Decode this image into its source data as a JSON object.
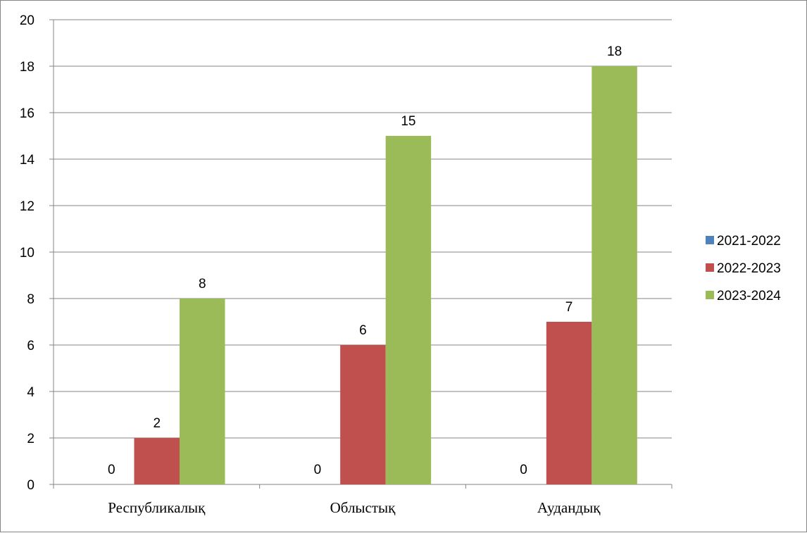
{
  "chart_data": {
    "type": "bar",
    "title": "",
    "xlabel": "",
    "ylabel": "",
    "categories": [
      "Республикалық",
      "Облыстық",
      "Аудандық"
    ],
    "series": [
      {
        "name": "2021-2022",
        "color": "#4F81BD",
        "values": [
          0,
          0,
          0
        ]
      },
      {
        "name": "2022-2023",
        "color": "#C0504D",
        "values": [
          2,
          6,
          7
        ]
      },
      {
        "name": "2023-2024",
        "color": "#9BBB59",
        "values": [
          8,
          15,
          18
        ]
      }
    ],
    "ylim": [
      0,
      20
    ],
    "y_ticks": [
      "0",
      "2",
      "4",
      "6",
      "8",
      "10",
      "12",
      "14",
      "16",
      "18",
      "20"
    ],
    "grid": true,
    "data_labels": true,
    "legend_position": "right"
  }
}
